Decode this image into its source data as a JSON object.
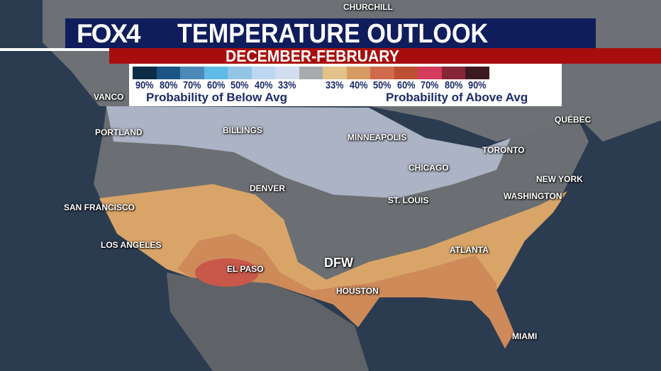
{
  "header": {
    "logo": "FOX4",
    "title": "TEMPERATURE OUTLOOK",
    "subtitle": "DECEMBER-FEBRUARY"
  },
  "legend": {
    "colors": [
      "#0f2c47",
      "#1a5585",
      "#4b8ab8",
      "#5ebbe8",
      "#93c4e4",
      "#bcd8f0",
      "#d2def0",
      "#a8aaad",
      "#e3c28a",
      "#d89a63",
      "#cf6a4d",
      "#bd4f35",
      "#d43b5c",
      "#862637",
      "#3a1a20"
    ],
    "labels": [
      "90%",
      "80%",
      "70%",
      "60%",
      "50%",
      "40%",
      "33%",
      "33%",
      "40%",
      "50%",
      "60%",
      "70%",
      "80%",
      "90%"
    ],
    "below_label": "Probability of Below Avg",
    "above_label": "Probability of Above Avg"
  },
  "cities": [
    "CHURCHILL",
    "VANCO",
    "PORTLAND",
    "BILLINGS",
    "MINNEAPOLIS",
    "QUÉBEC",
    "TORONTO",
    "CHICAGO",
    "NEW YORK",
    "WASHINGTON",
    "DENVER",
    "ST. LOUIS",
    "SAN FRANCISCO",
    "LOS ANGELES",
    "ATLANTA",
    "EL PASO",
    "DFW",
    "HOUSTON",
    "MIAMI"
  ]
}
